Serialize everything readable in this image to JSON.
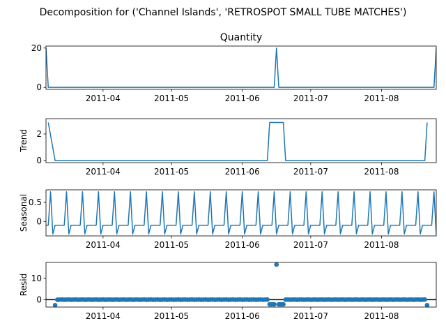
{
  "chart_data": {
    "type": "line",
    "title": "Decomposition for ('Channel Islands', 'RETROSPOT SMALL TUBE MATCHES')",
    "x_domain": [
      "2011-03-07",
      "2011-08-25"
    ],
    "x_ticks": [
      "2011-04",
      "2011-05",
      "2011-06",
      "2011-07",
      "2011-08"
    ],
    "color": "#1f77b4",
    "panels": [
      {
        "name": "observed",
        "title": "Quantity",
        "ylabel": "",
        "type": "line",
        "ylim": [
          -1,
          21
        ],
        "yticks": [
          0,
          20
        ],
        "x": [
          "2011-03-07",
          "2011-03-08",
          "2011-06-15",
          "2011-06-16",
          "2011-06-17",
          "2011-08-24",
          "2011-08-25"
        ],
        "values": [
          20,
          0,
          0,
          20,
          0,
          0,
          20
        ]
      },
      {
        "name": "trend",
        "title": "",
        "ylabel": "Trend",
        "type": "line",
        "ylim": [
          -0.15,
          3.15
        ],
        "yticks": [
          0,
          2
        ],
        "x": [
          "2011-03-08",
          "2011-03-11",
          "2011-06-12",
          "2011-06-13",
          "2011-06-19",
          "2011-06-20",
          "2011-08-20",
          "2011-08-21"
        ],
        "values": [
          2.86,
          0,
          0,
          2.86,
          2.86,
          0,
          0,
          2.86
        ]
      },
      {
        "name": "seasonal",
        "title": "",
        "ylabel": "Seasonal",
        "type": "line",
        "ylim": [
          -0.38,
          0.83
        ],
        "yticks": [
          0.0,
          0.5
        ],
        "period_start": "2011-03-07",
        "period_days": 7,
        "pattern": [
          -0.1,
          -0.1,
          0.78,
          -0.33,
          -0.1,
          -0.1,
          -0.1
        ]
      },
      {
        "name": "resid",
        "title": "",
        "ylabel": "Resid",
        "type": "scatter",
        "ylim": [
          -3.5,
          17.5
        ],
        "yticks": [
          0,
          10
        ],
        "zero_line": true,
        "points": [
          {
            "x": "2011-03-11",
            "y": -2.6
          },
          {
            "x": "2011-06-13",
            "y": -2.2
          },
          {
            "x": "2011-06-14",
            "y": -2.2
          },
          {
            "x": "2011-06-15",
            "y": -2.2
          },
          {
            "x": "2011-06-16",
            "y": 16.5
          },
          {
            "x": "2011-06-17",
            "y": -2.2
          },
          {
            "x": "2011-06-18",
            "y": -2.2
          },
          {
            "x": "2011-06-19",
            "y": -2.2
          },
          {
            "x": "2011-08-21",
            "y": -2.6
          }
        ],
        "near_zero_range": [
          "2011-03-12",
          "2011-08-20"
        ],
        "near_zero_value": 0.05
      }
    ]
  }
}
